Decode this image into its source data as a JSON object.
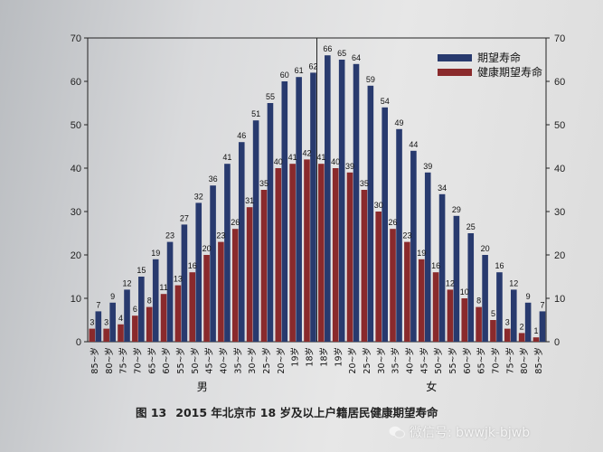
{
  "chart_data": {
    "type": "bar",
    "categories": [
      "85~岁",
      "80~岁",
      "75~岁",
      "70~岁",
      "65~岁",
      "60~岁",
      "55~岁",
      "50~岁",
      "45~岁",
      "40~岁",
      "35~岁",
      "30~岁",
      "25~岁",
      "20~岁",
      "19岁",
      "18岁",
      "18岁",
      "19岁",
      "20~岁",
      "25~岁",
      "30~岁",
      "35~岁",
      "40~岁",
      "45~岁",
      "50~岁",
      "55~岁",
      "60~岁",
      "65~岁",
      "70~岁",
      "75~岁",
      "80~岁",
      "85~岁"
    ],
    "series": [
      {
        "name": "期望寿命",
        "color": "#283a6e",
        "values": [
          7,
          9,
          12,
          15,
          19,
          23,
          27,
          32,
          36,
          41,
          46,
          51,
          55,
          60,
          61,
          62,
          66,
          65,
          64,
          59,
          54,
          49,
          44,
          39,
          34,
          29,
          25,
          20,
          16,
          12,
          9,
          7
        ]
      },
      {
        "name": "健康期望寿命",
        "color": "#8a2a2c",
        "values": [
          3,
          3,
          4,
          6,
          8,
          11,
          13,
          16,
          20,
          23,
          26,
          31,
          35,
          40,
          41,
          42,
          41,
          40,
          39,
          35,
          30,
          26,
          23,
          19,
          16,
          12,
          10,
          8,
          5,
          3,
          2,
          1
        ]
      }
    ],
    "ylim": [
      0,
      70
    ],
    "yticks": [
      0,
      10,
      20,
      30,
      40,
      50,
      60,
      70
    ],
    "group_labels": [
      "男",
      "女"
    ],
    "legend_position": "top-right",
    "grid": false
  },
  "caption": {
    "figure_no": "图 13",
    "title": "2015 年北京市 18 岁及以上户籍居民健康期望寿命"
  },
  "watermark": {
    "text": "微信号: bwwjk-bjwb"
  }
}
